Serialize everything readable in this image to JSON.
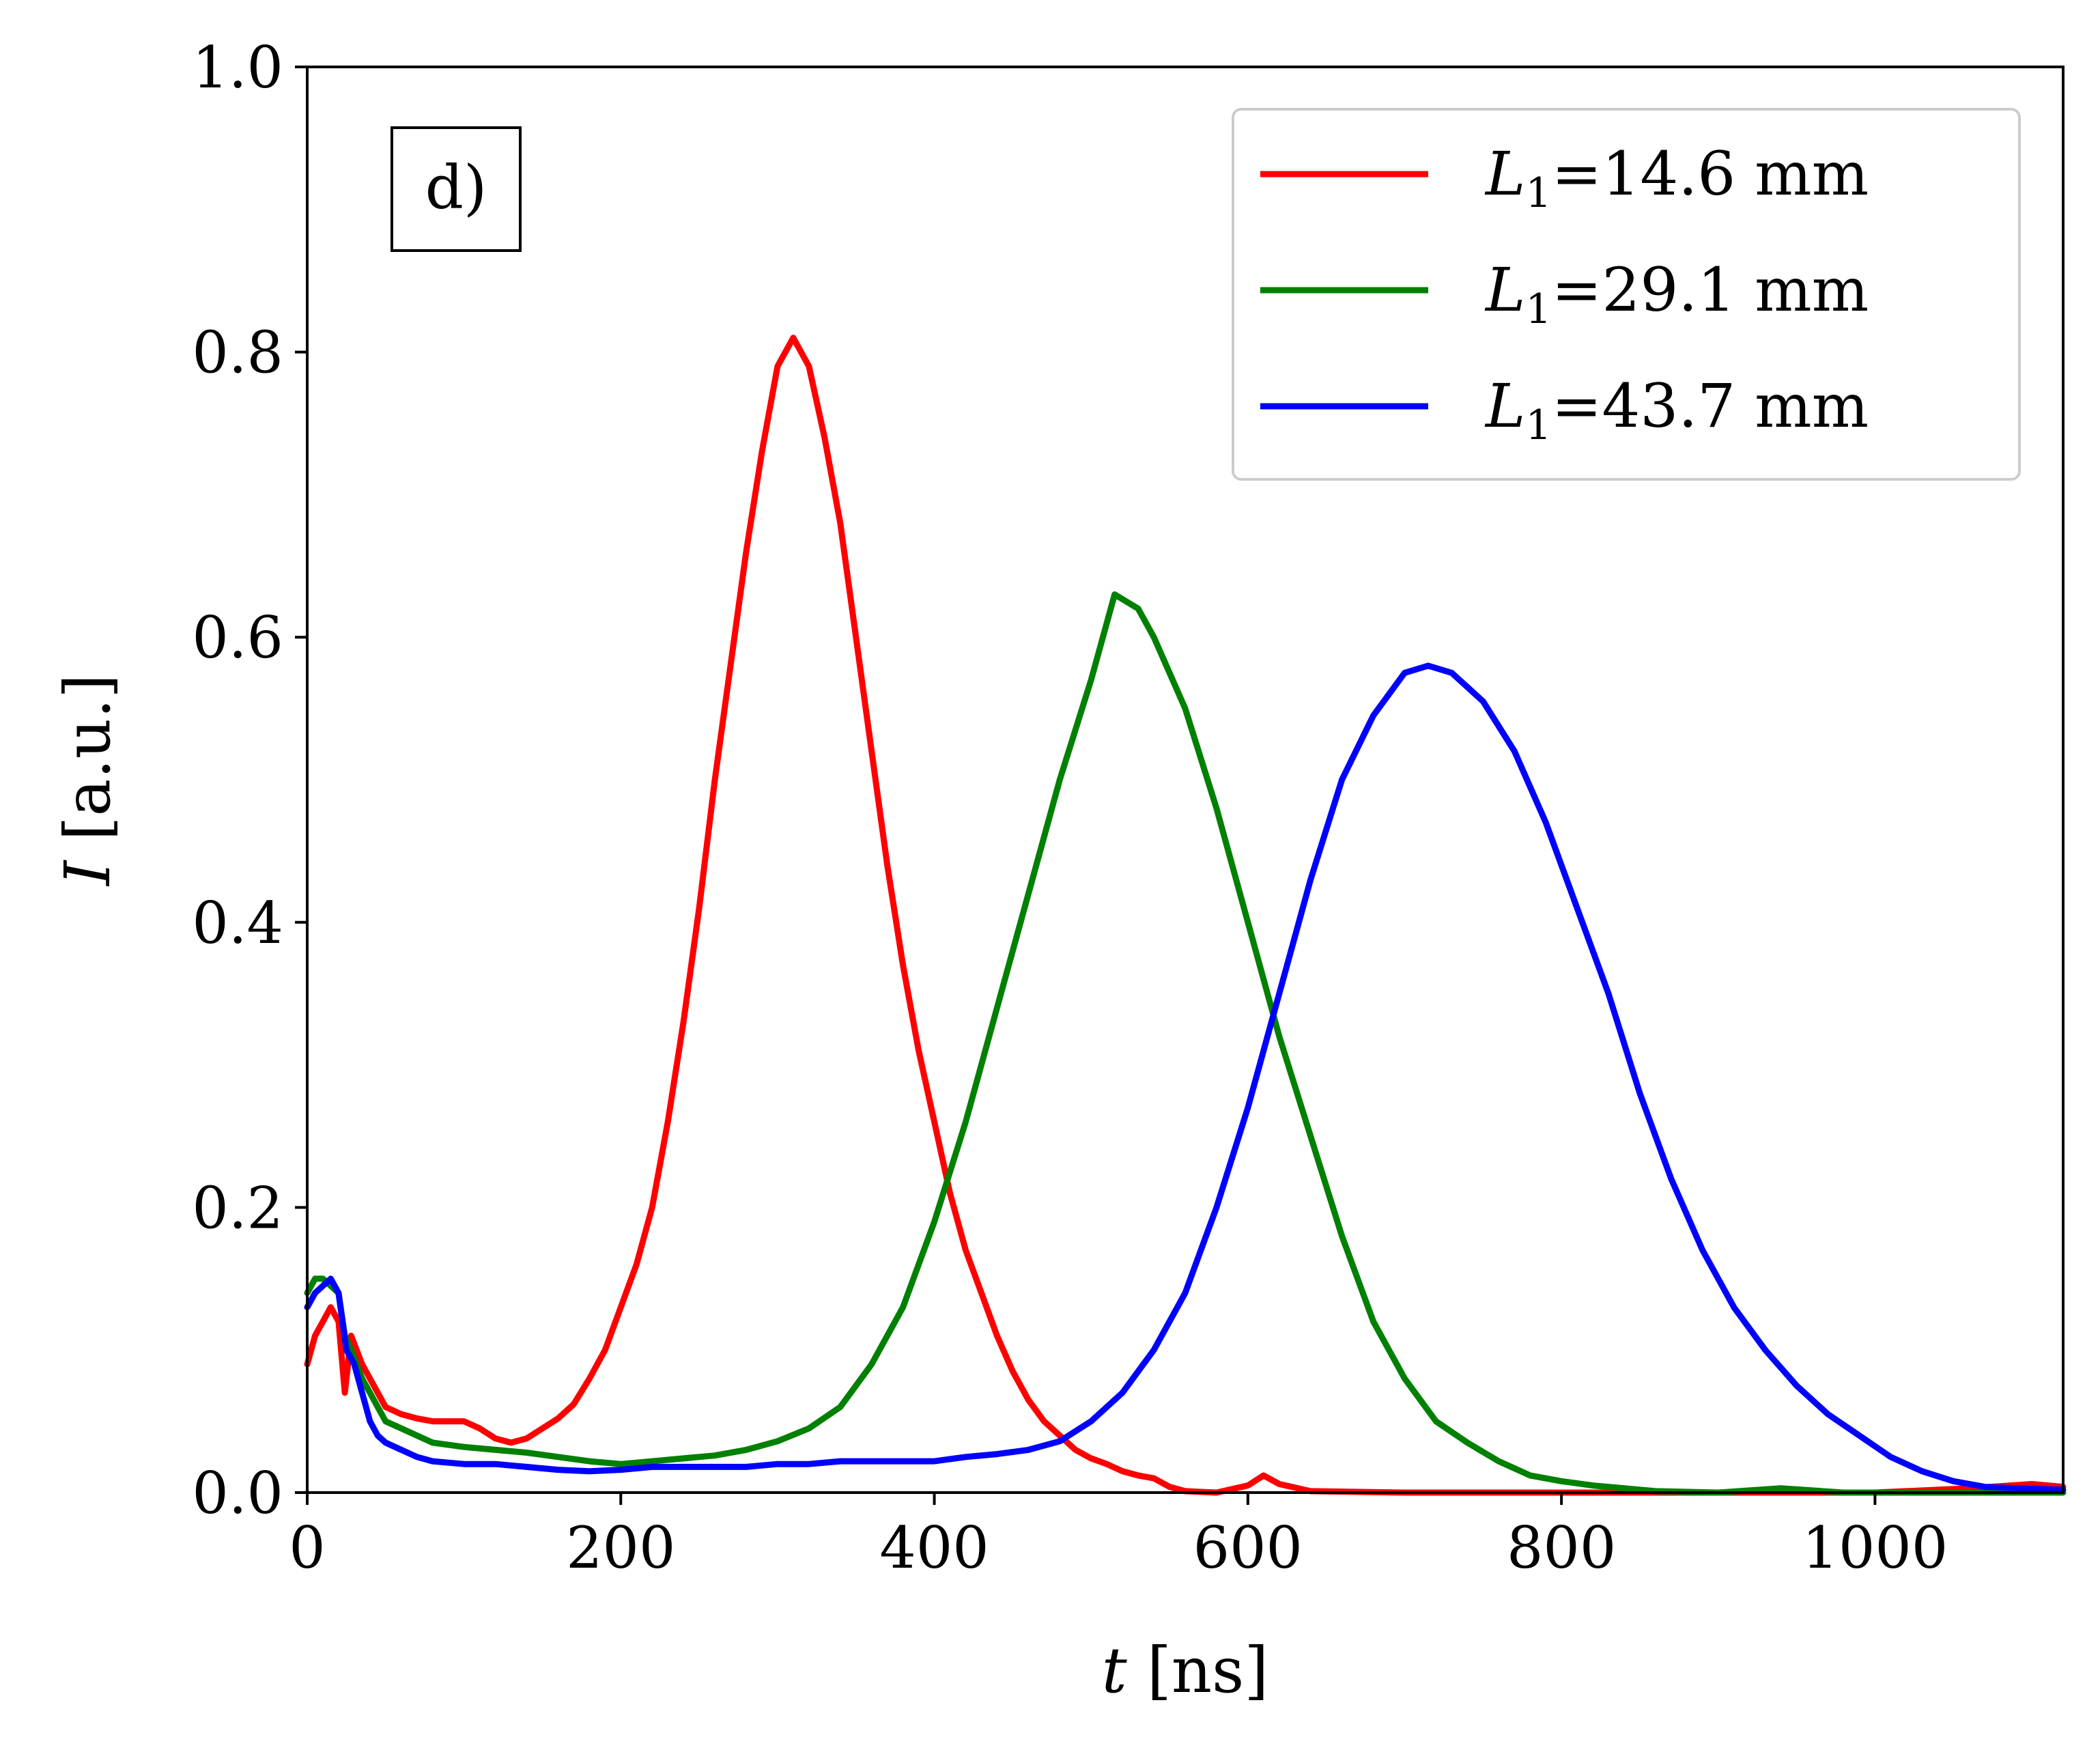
{
  "chart_data": {
    "type": "line",
    "panel_label": "d)",
    "xlabel": {
      "symbol": "t",
      "unit": " [ns]"
    },
    "ylabel": {
      "symbol": "I",
      "unit": " [a.u.]"
    },
    "xlim": [
      0,
      1120
    ],
    "ylim": [
      0.0,
      1.0
    ],
    "xticks": [
      0,
      200,
      400,
      600,
      800,
      1000
    ],
    "xtick_labels": [
      "0",
      "200",
      "400",
      "600",
      "800",
      "1000"
    ],
    "yticks": [
      0.0,
      0.2,
      0.4,
      0.6,
      0.8,
      1.0
    ],
    "ytick_labels": [
      "0.0",
      "0.2",
      "0.4",
      "0.6",
      "0.8",
      "1.0"
    ],
    "grid": false,
    "legend_position": "top-right",
    "series": [
      {
        "name": "L1=14.6 mm",
        "label_symbol": "L",
        "label_subscript": "1",
        "label_rest": "=14.6 mm",
        "color": "#ff0000",
        "peak_t": 310,
        "peak_I": 0.81,
        "points": [
          [
            0,
            0.09
          ],
          [
            5,
            0.11
          ],
          [
            10,
            0.12
          ],
          [
            15,
            0.13
          ],
          [
            20,
            0.12
          ],
          [
            24,
            0.07
          ],
          [
            28,
            0.11
          ],
          [
            35,
            0.09
          ],
          [
            40,
            0.08
          ],
          [
            50,
            0.06
          ],
          [
            60,
            0.055
          ],
          [
            70,
            0.052
          ],
          [
            80,
            0.05
          ],
          [
            90,
            0.05
          ],
          [
            100,
            0.05
          ],
          [
            110,
            0.045
          ],
          [
            120,
            0.038
          ],
          [
            130,
            0.035
          ],
          [
            140,
            0.038
          ],
          [
            150,
            0.045
          ],
          [
            160,
            0.052
          ],
          [
            170,
            0.062
          ],
          [
            180,
            0.08
          ],
          [
            190,
            0.1
          ],
          [
            200,
            0.13
          ],
          [
            210,
            0.16
          ],
          [
            220,
            0.2
          ],
          [
            230,
            0.26
          ],
          [
            240,
            0.33
          ],
          [
            250,
            0.41
          ],
          [
            260,
            0.5
          ],
          [
            270,
            0.58
          ],
          [
            280,
            0.66
          ],
          [
            290,
            0.73
          ],
          [
            300,
            0.79
          ],
          [
            310,
            0.81
          ],
          [
            320,
            0.79
          ],
          [
            330,
            0.74
          ],
          [
            340,
            0.68
          ],
          [
            350,
            0.6
          ],
          [
            360,
            0.52
          ],
          [
            370,
            0.44
          ],
          [
            380,
            0.37
          ],
          [
            390,
            0.31
          ],
          [
            400,
            0.26
          ],
          [
            410,
            0.21
          ],
          [
            420,
            0.17
          ],
          [
            430,
            0.14
          ],
          [
            440,
            0.11
          ],
          [
            450,
            0.085
          ],
          [
            460,
            0.065
          ],
          [
            470,
            0.05
          ],
          [
            480,
            0.04
          ],
          [
            490,
            0.03
          ],
          [
            500,
            0.024
          ],
          [
            510,
            0.02
          ],
          [
            520,
            0.015
          ],
          [
            530,
            0.012
          ],
          [
            540,
            0.01
          ],
          [
            550,
            0.004
          ],
          [
            560,
            0.001
          ],
          [
            580,
            0.0
          ],
          [
            600,
            0.005
          ],
          [
            610,
            0.012
          ],
          [
            620,
            0.006
          ],
          [
            640,
            0.001
          ],
          [
            700,
            0.0
          ],
          [
            800,
            0.0
          ],
          [
            900,
            0.0
          ],
          [
            1000,
            0.0
          ],
          [
            1060,
            0.003
          ],
          [
            1100,
            0.006
          ],
          [
            1120,
            0.004
          ]
        ]
      },
      {
        "name": "L1=29.1 mm",
        "label_symbol": "L",
        "label_subscript": "1",
        "label_rest": "=29.1 mm",
        "color": "#008000",
        "peak_t": 515,
        "peak_I": 0.63,
        "points": [
          [
            0,
            0.14
          ],
          [
            5,
            0.15
          ],
          [
            10,
            0.15
          ],
          [
            15,
            0.145
          ],
          [
            20,
            0.14
          ],
          [
            24,
            0.11
          ],
          [
            28,
            0.1
          ],
          [
            35,
            0.08
          ],
          [
            40,
            0.07
          ],
          [
            50,
            0.05
          ],
          [
            60,
            0.045
          ],
          [
            70,
            0.04
          ],
          [
            80,
            0.035
          ],
          [
            100,
            0.032
          ],
          [
            120,
            0.03
          ],
          [
            140,
            0.028
          ],
          [
            160,
            0.025
          ],
          [
            180,
            0.022
          ],
          [
            200,
            0.02
          ],
          [
            220,
            0.022
          ],
          [
            240,
            0.024
          ],
          [
            260,
            0.026
          ],
          [
            280,
            0.03
          ],
          [
            300,
            0.036
          ],
          [
            320,
            0.045
          ],
          [
            340,
            0.06
          ],
          [
            360,
            0.09
          ],
          [
            380,
            0.13
          ],
          [
            400,
            0.19
          ],
          [
            420,
            0.26
          ],
          [
            440,
            0.34
          ],
          [
            460,
            0.42
          ],
          [
            480,
            0.5
          ],
          [
            500,
            0.57
          ],
          [
            515,
            0.63
          ],
          [
            530,
            0.62
          ],
          [
            540,
            0.6
          ],
          [
            560,
            0.55
          ],
          [
            580,
            0.48
          ],
          [
            600,
            0.4
          ],
          [
            620,
            0.32
          ],
          [
            640,
            0.25
          ],
          [
            660,
            0.18
          ],
          [
            680,
            0.12
          ],
          [
            700,
            0.08
          ],
          [
            720,
            0.05
          ],
          [
            740,
            0.035
          ],
          [
            760,
            0.022
          ],
          [
            780,
            0.012
          ],
          [
            800,
            0.008
          ],
          [
            820,
            0.005
          ],
          [
            840,
            0.003
          ],
          [
            860,
            0.001
          ],
          [
            900,
            0.0
          ],
          [
            940,
            0.003
          ],
          [
            980,
            0.0
          ],
          [
            1050,
            0.0
          ],
          [
            1120,
            0.0
          ]
        ]
      },
      {
        "name": "L1=43.7 mm",
        "label_symbol": "L",
        "label_subscript": "1",
        "label_rest": "=43.7 mm",
        "color": "#0000ff",
        "peak_t": 715,
        "peak_I": 0.58,
        "points": [
          [
            0,
            0.13
          ],
          [
            5,
            0.14
          ],
          [
            10,
            0.145
          ],
          [
            15,
            0.15
          ],
          [
            20,
            0.14
          ],
          [
            25,
            0.1
          ],
          [
            30,
            0.09
          ],
          [
            35,
            0.07
          ],
          [
            40,
            0.05
          ],
          [
            45,
            0.04
          ],
          [
            50,
            0.035
          ],
          [
            60,
            0.03
          ],
          [
            70,
            0.025
          ],
          [
            80,
            0.022
          ],
          [
            100,
            0.02
          ],
          [
            120,
            0.02
          ],
          [
            140,
            0.018
          ],
          [
            160,
            0.016
          ],
          [
            180,
            0.015
          ],
          [
            200,
            0.016
          ],
          [
            220,
            0.018
          ],
          [
            240,
            0.018
          ],
          [
            260,
            0.018
          ],
          [
            280,
            0.018
          ],
          [
            300,
            0.02
          ],
          [
            320,
            0.02
          ],
          [
            340,
            0.022
          ],
          [
            360,
            0.022
          ],
          [
            380,
            0.022
          ],
          [
            400,
            0.022
          ],
          [
            420,
            0.025
          ],
          [
            440,
            0.027
          ],
          [
            460,
            0.03
          ],
          [
            480,
            0.036
          ],
          [
            500,
            0.05
          ],
          [
            520,
            0.07
          ],
          [
            540,
            0.1
          ],
          [
            560,
            0.14
          ],
          [
            580,
            0.2
          ],
          [
            600,
            0.27
          ],
          [
            620,
            0.35
          ],
          [
            640,
            0.43
          ],
          [
            660,
            0.5
          ],
          [
            680,
            0.545
          ],
          [
            700,
            0.575
          ],
          [
            715,
            0.58
          ],
          [
            730,
            0.575
          ],
          [
            750,
            0.555
          ],
          [
            770,
            0.52
          ],
          [
            790,
            0.47
          ],
          [
            810,
            0.41
          ],
          [
            830,
            0.35
          ],
          [
            850,
            0.28
          ],
          [
            870,
            0.22
          ],
          [
            890,
            0.17
          ],
          [
            910,
            0.13
          ],
          [
            930,
            0.1
          ],
          [
            950,
            0.075
          ],
          [
            970,
            0.055
          ],
          [
            990,
            0.04
          ],
          [
            1010,
            0.025
          ],
          [
            1030,
            0.015
          ],
          [
            1050,
            0.008
          ],
          [
            1070,
            0.004
          ],
          [
            1090,
            0.003
          ],
          [
            1120,
            0.002
          ]
        ]
      }
    ]
  }
}
